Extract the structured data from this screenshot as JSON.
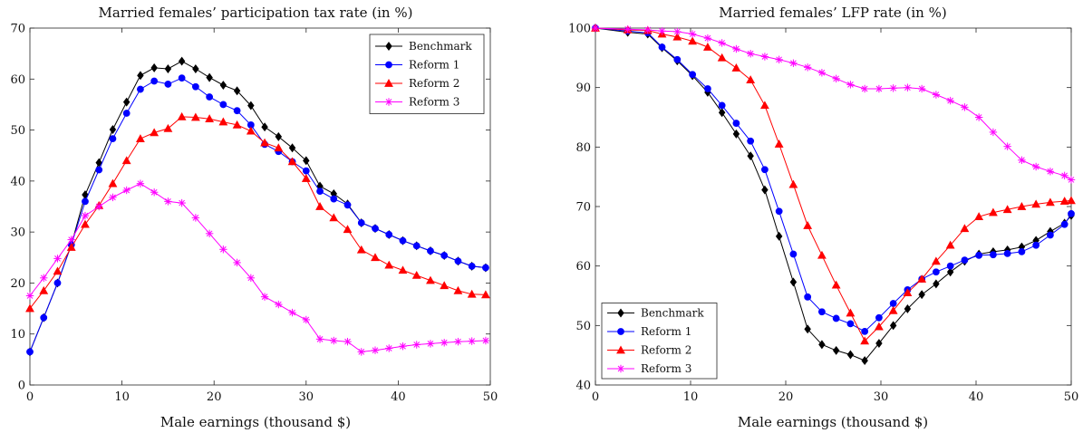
{
  "chart_data": [
    {
      "type": "line",
      "title": "Married females’ participation tax rate (in %)",
      "xlabel": "Male earnings (thousand $)",
      "ylabel": "",
      "xlim": [
        0,
        50
      ],
      "ylim": [
        0,
        70
      ],
      "xticks": [
        0,
        10,
        20,
        30,
        40,
        50
      ],
      "yticks": [
        0,
        10,
        20,
        30,
        40,
        50,
        60,
        70
      ],
      "legend_position": "top-right",
      "grid": false,
      "x": [
        0,
        1.5,
        3,
        4.5,
        6,
        7.5,
        9,
        10.5,
        12,
        13.5,
        15,
        16.5,
        18,
        19.5,
        21,
        22.5,
        24,
        25.5,
        27,
        28.5,
        30,
        31.5,
        33,
        34.5,
        36,
        37.5,
        39,
        40.5,
        42,
        43.5,
        45,
        46.5,
        48,
        49.5
      ],
      "series": [
        {
          "name": "Benchmark",
          "color": "#000000",
          "marker": "diamond",
          "values": [
            6.5,
            13.2,
            20.0,
            27.5,
            37.3,
            43.6,
            50.1,
            55.5,
            60.7,
            62.2,
            62.0,
            63.5,
            62.0,
            60.3,
            58.8,
            57.7,
            54.8,
            50.6,
            48.7,
            46.5,
            44.0,
            39.0,
            37.5,
            35.5,
            31.8,
            30.7,
            29.5,
            28.3,
            27.3,
            26.3,
            25.4,
            24.3,
            23.3,
            23.0
          ]
        },
        {
          "name": "Reform 1",
          "color": "#0000ff",
          "marker": "circle",
          "values": [
            6.5,
            13.2,
            20.0,
            27.5,
            36.0,
            42.2,
            48.3,
            53.3,
            58.0,
            59.6,
            59.0,
            60.2,
            58.5,
            56.5,
            55.0,
            53.8,
            51.0,
            47.2,
            45.8,
            43.8,
            42.0,
            38.0,
            36.5,
            35.3,
            31.8,
            30.7,
            29.5,
            28.3,
            27.3,
            26.3,
            25.4,
            24.3,
            23.3,
            23.0
          ]
        },
        {
          "name": "Reform 2",
          "color": "#ff0000",
          "marker": "triangle",
          "values": [
            15.0,
            18.5,
            22.3,
            27.0,
            31.5,
            35.2,
            39.5,
            44.0,
            48.3,
            49.5,
            50.3,
            52.6,
            52.5,
            52.2,
            51.6,
            51.0,
            49.8,
            47.5,
            46.5,
            43.8,
            40.5,
            35.0,
            32.8,
            30.5,
            26.5,
            25.0,
            23.5,
            22.5,
            21.5,
            20.5,
            19.5,
            18.5,
            17.8,
            17.7
          ]
        },
        {
          "name": "Reform 3",
          "color": "#ff00ff",
          "marker": "star",
          "values": [
            17.5,
            21.0,
            24.8,
            28.5,
            33.2,
            35.0,
            36.8,
            38.2,
            39.5,
            37.8,
            36.0,
            35.7,
            32.8,
            29.7,
            26.6,
            24.0,
            21.0,
            17.3,
            15.8,
            14.2,
            12.8,
            9.0,
            8.7,
            8.5,
            6.5,
            6.8,
            7.2,
            7.6,
            7.9,
            8.1,
            8.3,
            8.5,
            8.6,
            8.7
          ]
        }
      ]
    },
    {
      "type": "line",
      "title": "Married females’ LFP rate (in %)",
      "xlabel": "Male earnings (thousand $)",
      "ylabel": "",
      "xlim": [
        0,
        50
      ],
      "ylim": [
        40,
        100
      ],
      "xticks": [
        0,
        10,
        20,
        30,
        40,
        50
      ],
      "yticks": [
        40,
        50,
        60,
        70,
        80,
        90,
        100
      ],
      "legend_position": "bottom-left",
      "grid": false,
      "x": [
        0,
        3.4,
        5.5,
        7,
        8.6,
        10.2,
        11.8,
        13.3,
        14.8,
        16.3,
        17.8,
        19.3,
        20.8,
        22.3,
        23.8,
        25.3,
        26.8,
        28.3,
        29.8,
        31.3,
        32.8,
        34.3,
        35.8,
        37.3,
        38.8,
        40.3,
        41.8,
        43.3,
        44.8,
        46.3,
        47.8,
        49.3,
        50
      ],
      "series": [
        {
          "name": "Benchmark",
          "color": "#000000",
          "marker": "diamond",
          "values": [
            100.0,
            99.3,
            99.0,
            96.7,
            94.5,
            92.0,
            89.2,
            85.8,
            82.2,
            78.5,
            72.8,
            65.0,
            57.3,
            49.4,
            46.8,
            45.8,
            45.1,
            44.1,
            47.0,
            50.0,
            52.8,
            55.2,
            57.0,
            59.0,
            60.8,
            62.0,
            62.4,
            62.7,
            63.2,
            64.3,
            65.8,
            67.2,
            68.5
          ]
        },
        {
          "name": "Reform 1",
          "color": "#0000ff",
          "marker": "circle",
          "values": [
            100.0,
            99.5,
            99.2,
            96.8,
            94.7,
            92.2,
            89.8,
            87.0,
            84.0,
            81.0,
            76.2,
            69.2,
            62.0,
            54.8,
            52.3,
            51.2,
            50.3,
            49.0,
            51.3,
            53.7,
            56.0,
            57.8,
            59.0,
            60.0,
            61.0,
            61.8,
            61.9,
            62.1,
            62.4,
            63.5,
            65.2,
            67.0,
            68.8
          ]
        },
        {
          "name": "Reform 2",
          "color": "#ff0000",
          "marker": "triangle",
          "values": [
            100.0,
            99.7,
            99.6,
            99.0,
            98.5,
            97.8,
            96.8,
            95.0,
            93.3,
            91.3,
            87.0,
            80.5,
            73.7,
            66.8,
            61.8,
            56.8,
            52.1,
            47.4,
            49.8,
            52.5,
            55.5,
            57.8,
            60.8,
            63.5,
            66.3,
            68.3,
            69.0,
            69.5,
            70.0,
            70.4,
            70.7,
            70.9,
            71.0
          ]
        },
        {
          "name": "Reform 3",
          "color": "#ff00ff",
          "marker": "star",
          "values": [
            100.0,
            99.8,
            99.7,
            99.5,
            99.4,
            99.0,
            98.3,
            97.5,
            96.5,
            95.7,
            95.2,
            94.7,
            94.1,
            93.4,
            92.5,
            91.5,
            90.5,
            89.8,
            89.8,
            89.9,
            90.0,
            89.8,
            88.8,
            87.8,
            86.7,
            85.0,
            82.5,
            80.1,
            77.8,
            76.7,
            75.9,
            75.2,
            74.5
          ]
        }
      ]
    }
  ]
}
